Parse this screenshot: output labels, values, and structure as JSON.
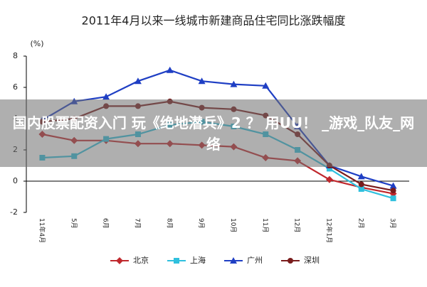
{
  "chart_data": {
    "type": "line",
    "title": "2011年4月以来一线城市新建商品住宅同比涨跌幅度",
    "y_label": "(%)",
    "categories": [
      "11年4月",
      "5月",
      "6月",
      "7月",
      "8月",
      "9月",
      "10月",
      "11月",
      "12月",
      "12年1月",
      "2月",
      "3月"
    ],
    "series": [
      {
        "name": "北京",
        "color": "#c0282d",
        "marker": "diamond",
        "values": [
          3.0,
          2.6,
          2.6,
          2.4,
          2.4,
          2.3,
          2.2,
          1.5,
          1.3,
          0.1,
          -0.4,
          -0.8
        ]
      },
      {
        "name": "上海",
        "color": "#2fc0de",
        "marker": "square",
        "values": [
          1.5,
          1.6,
          2.7,
          3.0,
          3.6,
          3.8,
          3.5,
          3.0,
          2.0,
          0.8,
          -0.5,
          -1.1
        ]
      },
      {
        "name": "广州",
        "color": "#1f3fc4",
        "marker": "triangle",
        "values": [
          3.9,
          5.1,
          5.4,
          6.4,
          7.1,
          6.4,
          6.2,
          6.1,
          3.5,
          1.0,
          0.3,
          -0.3
        ]
      },
      {
        "name": "深圳",
        "color": "#7a1c1c",
        "marker": "circle",
        "values": [
          3.8,
          4.0,
          4.8,
          4.8,
          5.1,
          4.7,
          4.6,
          4.2,
          3.0,
          1.0,
          -0.2,
          -0.6
        ]
      }
    ],
    "ylim": [
      -2,
      8
    ],
    "yticks": [
      -2,
      0,
      2,
      4,
      6,
      8
    ]
  },
  "overlay": {
    "text": "国内股票配资入门 玩《绝地潜兵》2 ？ 用UU！ _游戏_队友_网络"
  }
}
